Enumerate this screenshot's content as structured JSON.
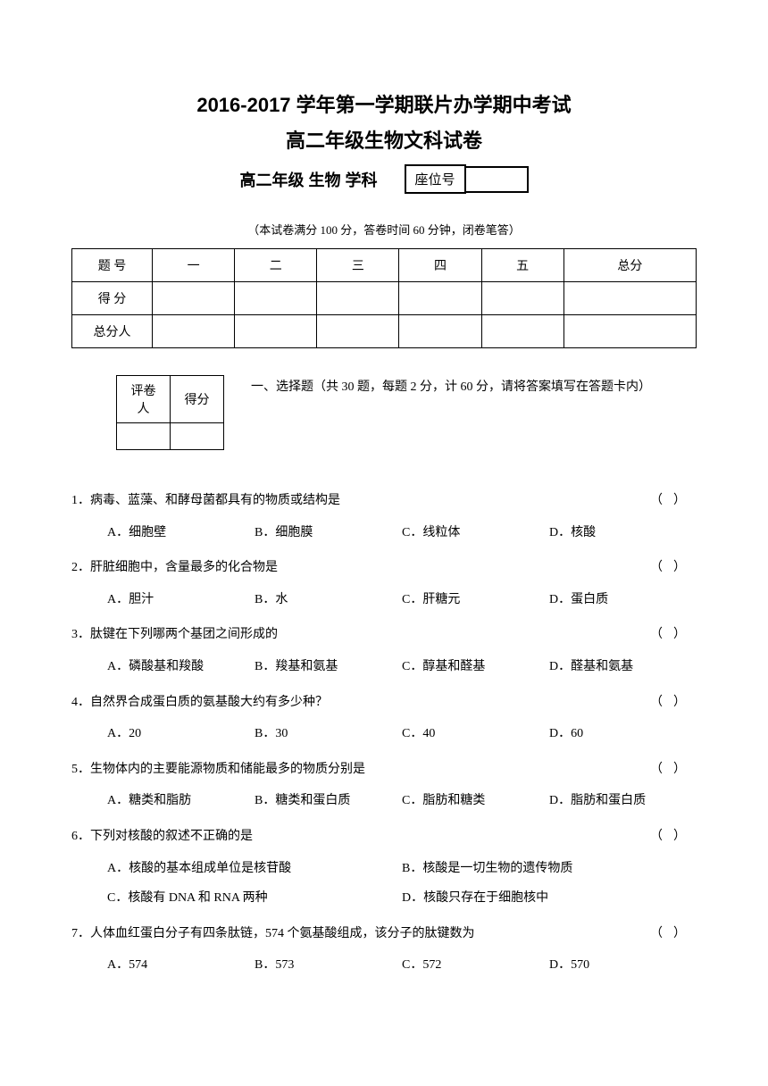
{
  "header": {
    "title_main": "2016-2017 学年第一学期联片办学期中考试",
    "title_sub": "高二年级生物文科试卷",
    "subject_line": "高二年级  生物  学科",
    "seat_label": "座位号",
    "exam_info": "（本试卷满分 100 分，答卷时间 60 分钟，闭卷笔答）"
  },
  "score_table": {
    "row1": [
      "题  号",
      "一",
      "二",
      "三",
      "四",
      "五",
      "总分"
    ],
    "row2_label": "得  分",
    "row3_label": "总分人"
  },
  "grader_table": {
    "header": [
      "评卷人",
      "得分"
    ]
  },
  "section1": {
    "title": "一、选择题（共 30 题，每题 2 分，计 60 分，请将答案填写在答题卡内）"
  },
  "questions": [
    {
      "num": "1．",
      "stem": "病毒、蓝藻、和酵母菌都具有的物质或结构是",
      "options": [
        "A．细胞壁",
        "B．细胞膜",
        "C．线粒体",
        "D．核酸"
      ]
    },
    {
      "num": "2．",
      "stem": "肝脏细胞中，含量最多的化合物是",
      "options": [
        "A．胆汁",
        "B．水",
        "C．肝糖元",
        "D．蛋白质"
      ]
    },
    {
      "num": "3．",
      "stem": "肽键在下列哪两个基团之间形成的",
      "options": [
        "A．磷酸基和羧酸",
        "B．羧基和氨基",
        "C．醇基和醛基",
        "D．醛基和氨基"
      ]
    },
    {
      "num": "4．",
      "stem": "自然界合成蛋白质的氨基酸大约有多少种？",
      "options": [
        "A．20",
        "B．30",
        "C．40",
        "D．60"
      ]
    },
    {
      "num": "5．",
      "stem": "生物体内的主要能源物质和储能最多的物质分别是",
      "options": [
        "A．糖类和脂肪",
        "B．糖类和蛋白质",
        "C．脂肪和糖类",
        "D．脂肪和蛋白质"
      ]
    },
    {
      "num": "6．",
      "stem": "下列对核酸的叙述不正确的是",
      "options_2col": [
        [
          "A．核酸的基本组成单位是核苷酸",
          "B．核酸是一切生物的遗传物质"
        ],
        [
          "C．核酸有 DNA 和 RNA 两种",
          "D．核酸只存在于细胞核中"
        ]
      ]
    },
    {
      "num": "7．",
      "stem": "人体血红蛋白分子有四条肽链，574 个氨基酸组成，该分子的肽键数为",
      "options": [
        "A．574",
        "B．573",
        "C．572",
        "D．570"
      ]
    }
  ]
}
